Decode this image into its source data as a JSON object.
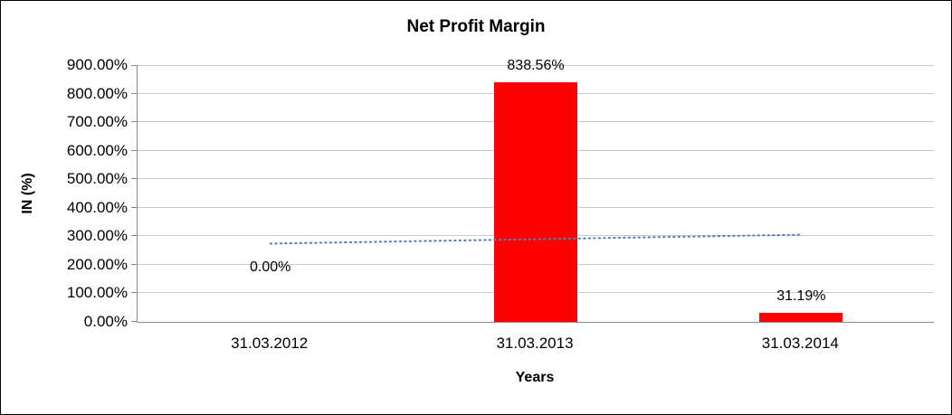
{
  "chart_data": {
    "type": "bar",
    "title": "Net Profit Margin",
    "xlabel": "Years",
    "ylabel": "IN (%)",
    "categories": [
      "31.03.2012",
      "31.03.2013",
      "31.03.2014"
    ],
    "values": [
      0,
      838.56,
      31.19
    ],
    "data_labels": [
      "0.00%",
      "838.56%",
      "31.19%"
    ],
    "ylim": [
      0,
      900
    ],
    "ytick_step": 100,
    "ytick_labels": [
      "0.00%",
      "100.00%",
      "200.00%",
      "300.00%",
      "400.00%",
      "500.00%",
      "600.00%",
      "700.00%",
      "800.00%",
      "900.00%"
    ],
    "grid": true,
    "legend": "none",
    "bar_color": "#FF0000",
    "trendline": {
      "type": "linear",
      "style": "dotted",
      "color": "#4F81BD",
      "start_value": 274.3,
      "end_value": 305.5
    }
  }
}
